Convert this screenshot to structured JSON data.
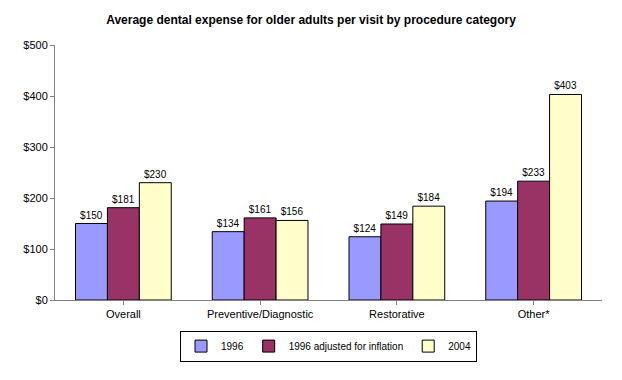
{
  "chart_data": {
    "type": "bar",
    "title": "Average dental expense for older adults per visit by procedure category",
    "categories": [
      "Overall",
      "Preventive/Diagnostic",
      "Restorative",
      "Other*"
    ],
    "series": [
      {
        "name": "1996",
        "color": "#9999ff",
        "values": [
          150,
          134,
          124,
          194
        ],
        "value_labels": [
          "$150",
          "$134",
          "$124",
          "$194"
        ]
      },
      {
        "name": "1996 adjusted for inflation",
        "color": "#993366",
        "values": [
          181,
          161,
          149,
          233
        ],
        "value_labels": [
          "$181",
          "$161",
          "$149",
          "$233"
        ]
      },
      {
        "name": "2004",
        "color": "#ffffcc",
        "values": [
          230,
          156,
          184,
          403
        ],
        "value_labels": [
          "$230",
          "$156",
          "$184",
          "$403"
        ]
      }
    ],
    "ylim": [
      0,
      500
    ],
    "yticks": [
      {
        "value": 0,
        "label": "$0"
      },
      {
        "value": 100,
        "label": "$100"
      },
      {
        "value": 200,
        "label": "$200"
      },
      {
        "value": 300,
        "label": "$300"
      },
      {
        "value": 400,
        "label": "$400"
      },
      {
        "value": 500,
        "label": "$500"
      }
    ],
    "grid": false,
    "legend": "bottom",
    "data_labels": true
  }
}
